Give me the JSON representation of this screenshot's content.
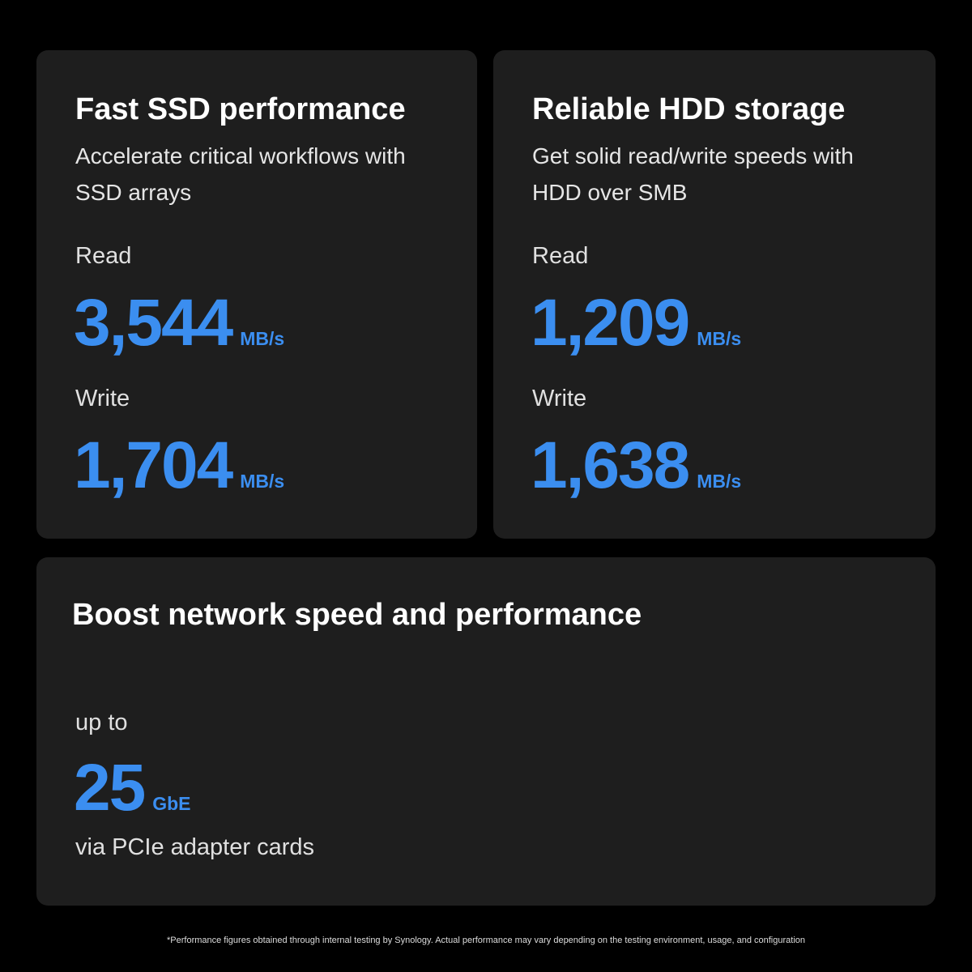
{
  "cards": [
    {
      "title": "Fast SSD performance",
      "subtitle": "Accelerate critical workflows with SSD arrays",
      "read_label": "Read",
      "read_value": "3,544",
      "read_unit": "MB/s",
      "write_label": "Write",
      "write_value": "1,704",
      "write_unit": "MB/s"
    },
    {
      "title": "Reliable HDD storage",
      "subtitle": "Get solid read/write speeds with HDD over SMB",
      "read_label": "Read",
      "read_value": "1,209",
      "read_unit": "MB/s",
      "write_label": "Write",
      "write_value": "1,638",
      "write_unit": "MB/s"
    }
  ],
  "network": {
    "title": "Boost network speed and performance",
    "prefix": "up to",
    "value": "25",
    "unit": "GbE",
    "suffix": "via PCIe adapter cards"
  },
  "footnote": "*Performance figures obtained through internal testing by Synology. Actual performance may vary depending on the testing environment, usage, and configuration",
  "colors": {
    "accent": "#3b8ef0",
    "card": "#1e1e1e",
    "background": "#000000"
  }
}
